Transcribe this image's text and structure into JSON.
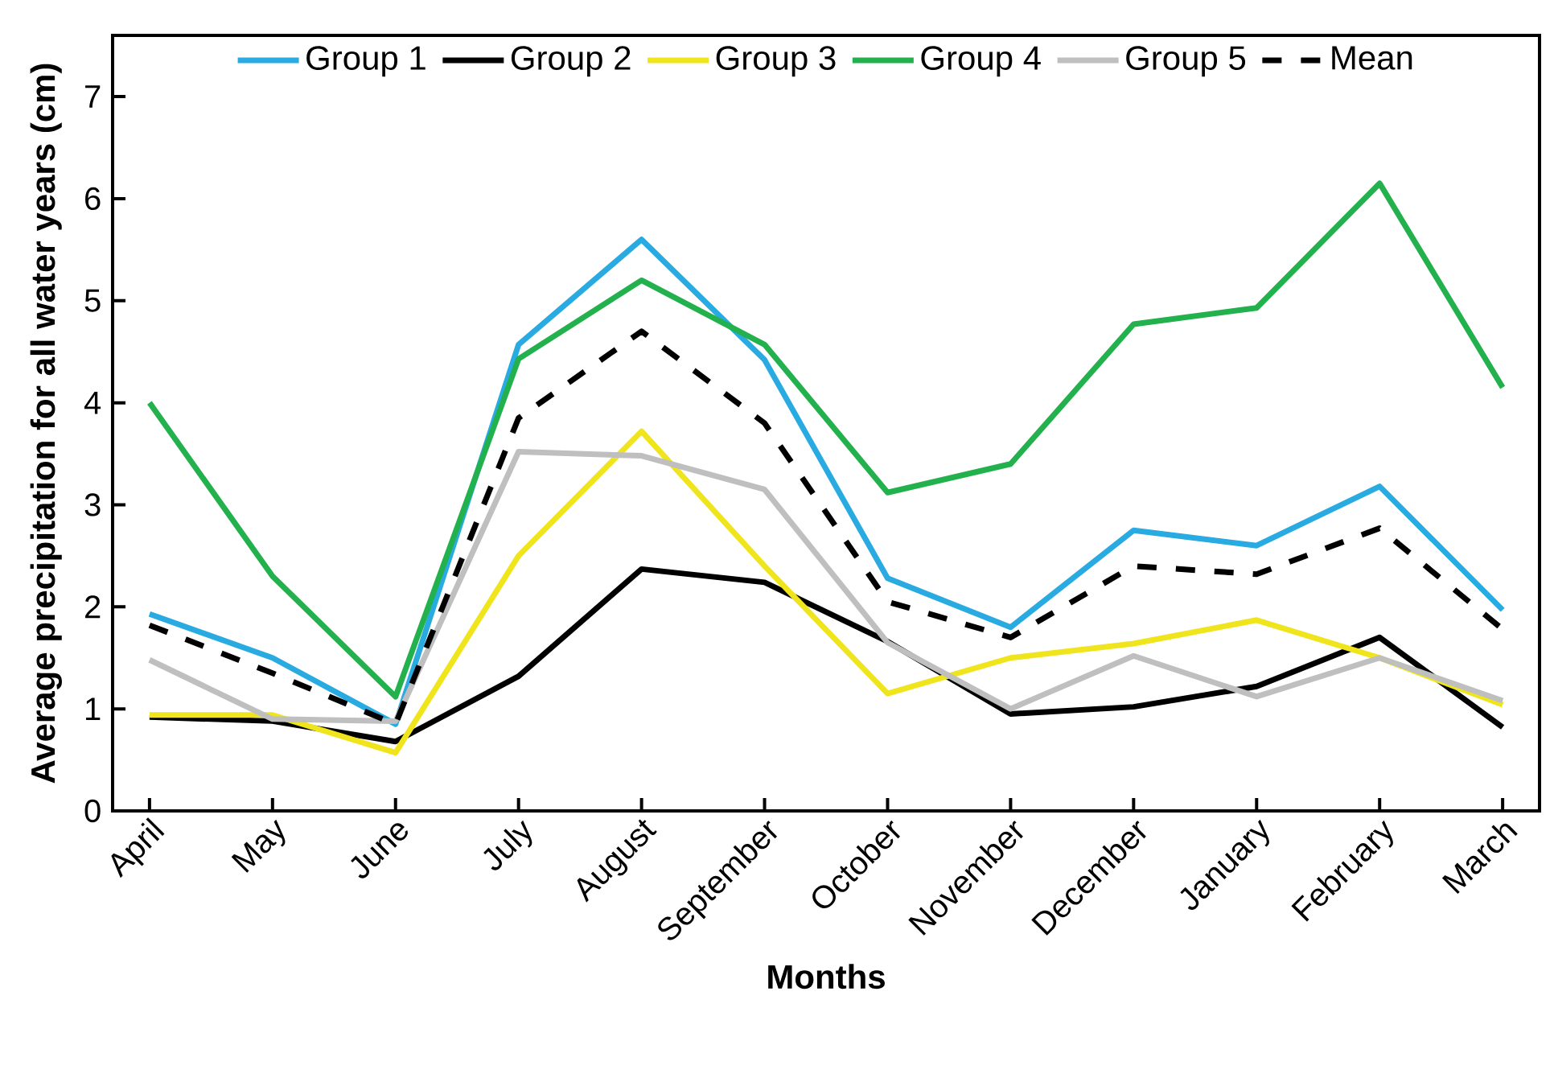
{
  "chart_data": {
    "type": "line",
    "xlabel": "Months",
    "ylabel": "Average precipitation for all water years (cm)",
    "categories": [
      "April",
      "May",
      "June",
      "July",
      "August",
      "September",
      "October",
      "November",
      "December",
      "January",
      "February",
      "March"
    ],
    "series": [
      {
        "name": "Group 1",
        "color": "#29abe2",
        "values": [
          1.93,
          1.5,
          0.85,
          4.57,
          5.6,
          4.42,
          2.28,
          1.8,
          2.75,
          2.6,
          3.18,
          1.97
        ]
      },
      {
        "name": "Group 2",
        "color": "#000000",
        "values": [
          0.92,
          0.88,
          0.68,
          1.32,
          2.37,
          2.24,
          1.66,
          0.95,
          1.02,
          1.22,
          1.7,
          0.82
        ]
      },
      {
        "name": "Group 3",
        "color": "#f0e51c",
        "values": [
          0.94,
          0.94,
          0.57,
          2.5,
          3.72,
          2.4,
          1.15,
          1.5,
          1.64,
          1.87,
          1.5,
          1.04
        ]
      },
      {
        "name": "Group 4",
        "color": "#22b14c",
        "values": [
          4.0,
          2.3,
          1.12,
          4.43,
          5.2,
          4.57,
          3.12,
          3.4,
          4.77,
          4.93,
          6.15,
          4.15
        ]
      },
      {
        "name": "Group 5",
        "color": "#bfbfbf",
        "values": [
          1.48,
          0.9,
          0.88,
          3.52,
          3.48,
          3.15,
          1.65,
          1.0,
          1.52,
          1.12,
          1.5,
          1.08
        ]
      },
      {
        "name": "Mean",
        "color": "#000000",
        "line_style": "dashed",
        "values": [
          1.82,
          1.35,
          0.85,
          3.85,
          4.7,
          3.8,
          2.05,
          1.7,
          2.4,
          2.32,
          2.77,
          1.78
        ]
      }
    ],
    "ylim": [
      0,
      7.6
    ],
    "yticks": [
      0,
      1,
      2,
      3,
      4,
      5,
      6,
      7
    ],
    "grid": false,
    "legend": "top",
    "line_style": "solid",
    "marker": "none"
  }
}
